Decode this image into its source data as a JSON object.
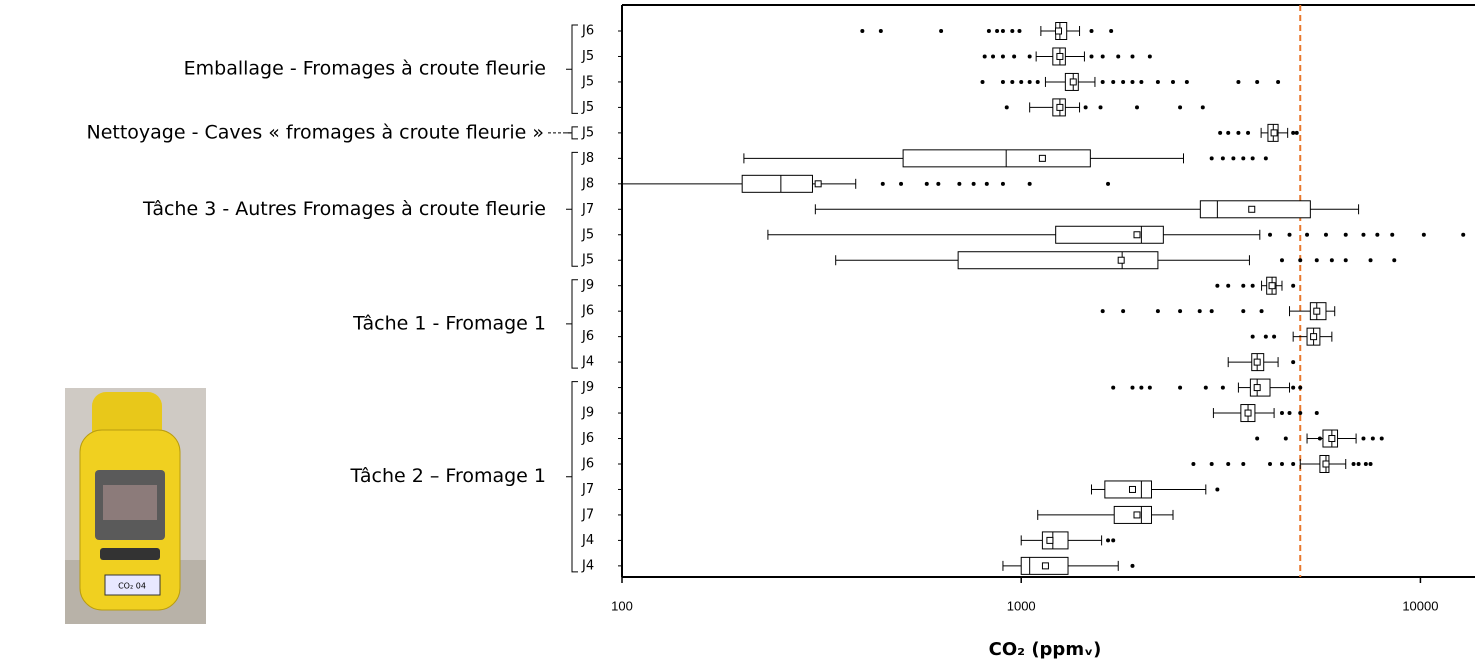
{
  "chart_data": {
    "type": "boxplot",
    "orientation": "horizontal",
    "xscale": "log",
    "xlim": [
      100,
      13700
    ],
    "xticks": [
      100,
      1000,
      10000
    ],
    "xlabel": "CO₂ (ppmᵥ)",
    "box_color": "#000000",
    "ref_line": {
      "value": 5000,
      "color": "#e8782c",
      "style": "dashed"
    },
    "groups": [
      {
        "label": "Emballage - Fromages à croute fleurie",
        "categories": [
          "J6",
          "J5",
          "J5",
          "J5"
        ],
        "boxes": [
          {
            "whislo": 1120,
            "q1": 1220,
            "med": 1250,
            "q3": 1300,
            "whishi": 1400,
            "mean": 1240,
            "fliers": [
              400,
              445,
              630,
              830,
              870,
              900,
              950,
              990,
              1500,
              1680
            ]
          },
          {
            "whislo": 1090,
            "q1": 1200,
            "med": 1250,
            "q3": 1290,
            "whishi": 1440,
            "mean": 1250,
            "fliers": [
              810,
              850,
              900,
              960,
              1050,
              1500,
              1600,
              1750,
              1900,
              2100
            ]
          },
          {
            "whislo": 1150,
            "q1": 1290,
            "med": 1350,
            "q3": 1390,
            "whishi": 1530,
            "mean": 1350,
            "fliers": [
              800,
              900,
              950,
              1000,
              1050,
              1100,
              1600,
              1700,
              1800,
              1900,
              2000,
              2200,
              2400,
              2600,
              3500,
              3900,
              4400
            ]
          },
          {
            "whislo": 1050,
            "q1": 1200,
            "med": 1250,
            "q3": 1290,
            "whishi": 1400,
            "mean": 1250,
            "fliers": [
              920,
              1450,
              1580,
              1950,
              2500,
              2850
            ]
          }
        ]
      },
      {
        "label": "Nettoyage - Caves « fromages à croute fleurie »",
        "categories": [
          "J5"
        ],
        "boxes": [
          {
            "whislo": 3990,
            "q1": 4150,
            "med": 4280,
            "q3": 4400,
            "whishi": 4650,
            "mean": 4300,
            "fliers": [
              3150,
              3300,
              3500,
              3700,
              4800,
              4900
            ]
          }
        ]
      },
      {
        "label": "Tâche 3 - Autres Fromages à croute fleurie",
        "categories": [
          "J8",
          "J8",
          "J7",
          "J5",
          "J5"
        ],
        "boxes": [
          {
            "whislo": 202,
            "q1": 506,
            "med": 917,
            "q3": 1490,
            "whishi": 2550,
            "mean": 1130,
            "fliers": [
              3000,
              3200,
              3400,
              3600,
              3800,
              4100
            ]
          },
          {
            "whislo": 100,
            "q1": 200,
            "med": 250,
            "q3": 300,
            "whishi": 385,
            "mean": 310,
            "fliers": [
              450,
              500,
              580,
              620,
              700,
              760,
              820,
              900,
              1050,
              1650
            ]
          },
          {
            "whislo": 305,
            "q1": 2810,
            "med": 3100,
            "q3": 5300,
            "whishi": 7000,
            "mean": 3780,
            "fliers": []
          },
          {
            "whislo": 232,
            "q1": 1220,
            "med": 2000,
            "q3": 2270,
            "whishi": 3960,
            "mean": 1950,
            "fliers": [
              4200,
              4700,
              5200,
              5800,
              6500,
              7200,
              7800,
              8500,
              10200,
              12800
            ]
          },
          {
            "whislo": 343,
            "q1": 695,
            "med": 1790,
            "q3": 2200,
            "whishi": 3730,
            "mean": 1780,
            "fliers": [
              4500,
              5000,
              5500,
              6000,
              6500,
              7500,
              8600
            ]
          }
        ]
      },
      {
        "label": "Tâche 1 - Fromage 1",
        "categories": [
          "J9",
          "J6",
          "J6",
          "J4"
        ],
        "boxes": [
          {
            "whislo": 4000,
            "q1": 4120,
            "med": 4250,
            "q3": 4350,
            "whishi": 4500,
            "mean": 4250,
            "fliers": [
              3100,
              3300,
              3600,
              3800,
              4800
            ]
          },
          {
            "whislo": 4700,
            "q1": 5300,
            "med": 5500,
            "q3": 5800,
            "whishi": 6100,
            "mean": 5500,
            "fliers": [
              1600,
              1800,
              2200,
              2500,
              2800,
              3000,
              3600,
              4000
            ]
          },
          {
            "whislo": 4800,
            "q1": 5200,
            "med": 5400,
            "q3": 5600,
            "whishi": 6000,
            "mean": 5400,
            "fliers": [
              3800,
              4100,
              4300
            ]
          },
          {
            "whislo": 3300,
            "q1": 3780,
            "med": 3900,
            "q3": 4050,
            "whishi": 4400,
            "mean": 3900,
            "fliers": [
              4800
            ]
          }
        ]
      },
      {
        "label": "Tâche 2 – Fromage 1",
        "categories": [
          "J9",
          "J9",
          "J6",
          "J6",
          "J7",
          "J7",
          "J4",
          "J4"
        ],
        "boxes": [
          {
            "whislo": 3500,
            "q1": 3750,
            "med": 3900,
            "q3": 4200,
            "whishi": 4700,
            "mean": 3900,
            "fliers": [
              1700,
              1900,
              2000,
              2100,
              2500,
              2900,
              3200,
              4800,
              5000
            ]
          },
          {
            "whislo": 3030,
            "q1": 3550,
            "med": 3700,
            "q3": 3850,
            "whishi": 4300,
            "mean": 3700,
            "fliers": [
              4500,
              4700,
              5000,
              5500
            ]
          },
          {
            "whislo": 5200,
            "q1": 5700,
            "med": 6000,
            "q3": 6200,
            "whishi": 6900,
            "mean": 6000,
            "fliers": [
              3900,
              4600,
              5600,
              7200,
              7600,
              8000
            ]
          },
          {
            "whislo": 5000,
            "q1": 5600,
            "med": 5800,
            "q3": 5900,
            "whishi": 6500,
            "mean": 5800,
            "fliers": [
              2700,
              3000,
              3300,
              3600,
              4200,
              4500,
              4800,
              6800,
              7000,
              7300,
              7500
            ]
          },
          {
            "whislo": 1500,
            "q1": 1620,
            "med": 2000,
            "q3": 2120,
            "whishi": 2900,
            "mean": 1900,
            "fliers": [
              3100
            ]
          },
          {
            "whislo": 1100,
            "q1": 1710,
            "med": 2000,
            "q3": 2120,
            "whishi": 2400,
            "mean": 1950,
            "fliers": []
          },
          {
            "whislo": 1000,
            "q1": 1130,
            "med": 1200,
            "q3": 1310,
            "whishi": 1590,
            "mean": 1180,
            "fliers": [
              1650,
              1700
            ]
          },
          {
            "whislo": 900,
            "q1": 1000,
            "med": 1050,
            "q3": 1310,
            "whishi": 1750,
            "mean": 1150,
            "fliers": [
              1900
            ]
          }
        ]
      }
    ]
  },
  "photo_label": "CO₂ 04"
}
